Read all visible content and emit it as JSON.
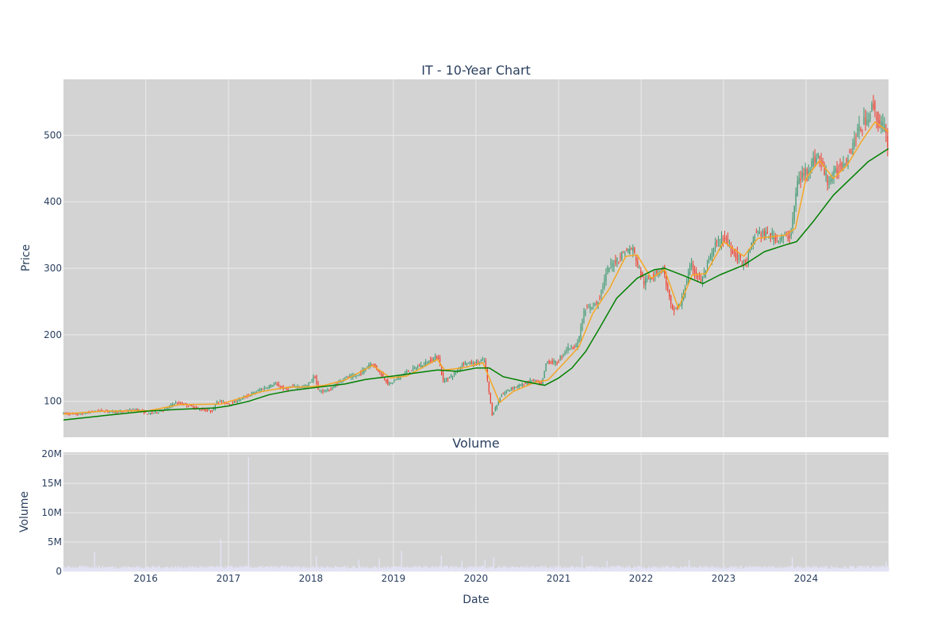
{
  "colors": {
    "plot_bg": "#d3d3d3",
    "grid": "#ebebeb",
    "increasing": "#3d9970",
    "decreasing": "#ef3e2e",
    "ma_short": "#f5a623",
    "ma_long": "#008000",
    "volume": "#e3e3f5",
    "text": "#2a3f5f"
  },
  "chart_data": [
    {
      "type": "candlestick",
      "title": "IT - 10-Year Chart",
      "ylabel": "Price",
      "xlabel": "",
      "xlim": [
        "2015-01-02",
        "2024-12-31"
      ],
      "ylim": [
        46,
        584
      ],
      "yticks": [
        100,
        200,
        300,
        400,
        500
      ],
      "grid": true,
      "legend": "none",
      "price_points": [
        [
          "2015-01-02",
          82
        ],
        [
          "2015-03-15",
          80
        ],
        [
          "2015-06-15",
          86
        ],
        [
          "2015-09-15",
          84
        ],
        [
          "2015-12-01",
          88
        ],
        [
          "2016-01-15",
          81
        ],
        [
          "2016-03-01",
          84
        ],
        [
          "2016-04-15",
          90
        ],
        [
          "2016-05-15",
          98
        ],
        [
          "2016-07-01",
          95
        ],
        [
          "2016-09-01",
          88
        ],
        [
          "2016-11-01",
          85
        ],
        [
          "2016-11-15",
          101
        ],
        [
          "2017-01-15",
          96
        ],
        [
          "2017-04-01",
          108
        ],
        [
          "2017-06-01",
          118
        ],
        [
          "2017-08-01",
          126
        ],
        [
          "2017-09-15",
          118
        ],
        [
          "2017-11-01",
          123
        ],
        [
          "2017-12-15",
          121
        ],
        [
          "2018-01-25",
          138
        ],
        [
          "2018-02-10",
          115
        ],
        [
          "2018-04-01",
          117
        ],
        [
          "2018-06-01",
          135
        ],
        [
          "2018-08-01",
          138
        ],
        [
          "2018-10-01",
          158
        ],
        [
          "2018-11-01",
          147
        ],
        [
          "2018-12-20",
          125
        ],
        [
          "2019-02-15",
          140
        ],
        [
          "2019-04-15",
          150
        ],
        [
          "2019-06-01",
          158
        ],
        [
          "2019-07-25",
          168
        ],
        [
          "2019-08-15",
          130
        ],
        [
          "2019-10-01",
          140
        ],
        [
          "2019-11-15",
          158
        ],
        [
          "2020-01-01",
          157
        ],
        [
          "2020-02-15",
          162
        ],
        [
          "2020-03-20",
          80
        ],
        [
          "2020-05-01",
          110
        ],
        [
          "2020-06-15",
          120
        ],
        [
          "2020-08-01",
          125
        ],
        [
          "2020-09-15",
          132
        ],
        [
          "2020-10-25",
          125
        ],
        [
          "2020-11-15",
          160
        ],
        [
          "2021-01-01",
          158
        ],
        [
          "2021-02-15",
          180
        ],
        [
          "2021-04-01",
          185
        ],
        [
          "2021-05-01",
          235
        ],
        [
          "2021-07-01",
          250
        ],
        [
          "2021-08-15",
          300
        ],
        [
          "2021-10-01",
          315
        ],
        [
          "2021-10-25",
          325
        ],
        [
          "2021-12-01",
          330
        ],
        [
          "2022-01-20",
          278
        ],
        [
          "2022-03-01",
          290
        ],
        [
          "2022-04-15",
          300
        ],
        [
          "2022-05-25",
          235
        ],
        [
          "2022-07-01",
          245
        ],
        [
          "2022-08-15",
          305
        ],
        [
          "2022-10-01",
          280
        ],
        [
          "2022-12-01",
          335
        ],
        [
          "2023-01-15",
          345
        ],
        [
          "2023-03-01",
          320
        ],
        [
          "2023-04-15",
          305
        ],
        [
          "2023-06-01",
          355
        ],
        [
          "2023-07-15",
          350
        ],
        [
          "2023-09-15",
          345
        ],
        [
          "2023-11-01",
          350
        ],
        [
          "2023-12-01",
          430
        ],
        [
          "2024-01-15",
          450
        ],
        [
          "2024-03-01",
          470
        ],
        [
          "2024-04-15",
          430
        ],
        [
          "2024-06-01",
          450
        ],
        [
          "2024-07-15",
          470
        ],
        [
          "2024-08-15",
          500
        ],
        [
          "2024-10-01",
          525
        ],
        [
          "2024-11-01",
          545
        ],
        [
          "2024-11-20",
          520
        ],
        [
          "2024-12-20",
          510
        ],
        [
          "2024-12-31",
          490
        ]
      ],
      "ma_short_points": [
        [
          "2015-01-02",
          81
        ],
        [
          "2015-06-15",
          85
        ],
        [
          "2016-01-15",
          86
        ],
        [
          "2016-06-01",
          95
        ],
        [
          "2016-12-01",
          96
        ],
        [
          "2017-06-01",
          115
        ],
        [
          "2017-09-15",
          121
        ],
        [
          "2018-01-01",
          122
        ],
        [
          "2018-03-01",
          124
        ],
        [
          "2018-06-01",
          132
        ],
        [
          "2018-10-01",
          154
        ],
        [
          "2018-12-20",
          135
        ],
        [
          "2019-03-01",
          138
        ],
        [
          "2019-07-15",
          163
        ],
        [
          "2019-08-15",
          147
        ],
        [
          "2019-11-01",
          150
        ],
        [
          "2020-02-01",
          158
        ],
        [
          "2020-04-15",
          98
        ],
        [
          "2020-06-15",
          115
        ],
        [
          "2020-09-15",
          128
        ],
        [
          "2020-11-15",
          132
        ],
        [
          "2021-02-01",
          160
        ],
        [
          "2021-04-01",
          182
        ],
        [
          "2021-06-01",
          232
        ],
        [
          "2021-08-15",
          270
        ],
        [
          "2021-10-25",
          318
        ],
        [
          "2021-12-15",
          320
        ],
        [
          "2022-02-15",
          285
        ],
        [
          "2022-04-15",
          298
        ],
        [
          "2022-06-15",
          240
        ],
        [
          "2022-08-15",
          290
        ],
        [
          "2022-10-15",
          292
        ],
        [
          "2023-01-01",
          340
        ],
        [
          "2023-04-01",
          318
        ],
        [
          "2023-06-01",
          345
        ],
        [
          "2023-10-01",
          350
        ],
        [
          "2023-11-15",
          360
        ],
        [
          "2024-01-01",
          435
        ],
        [
          "2024-03-01",
          462
        ],
        [
          "2024-05-01",
          435
        ],
        [
          "2024-07-01",
          455
        ],
        [
          "2024-09-01",
          490
        ],
        [
          "2024-11-01",
          520
        ],
        [
          "2024-12-31",
          505
        ]
      ],
      "ma_long_points": [
        [
          "2015-01-02",
          72
        ],
        [
          "2015-06-15",
          78
        ],
        [
          "2016-01-01",
          85
        ],
        [
          "2016-06-01",
          88
        ],
        [
          "2016-11-01",
          90
        ],
        [
          "2017-01-01",
          93
        ],
        [
          "2017-04-01",
          100
        ],
        [
          "2017-07-01",
          110
        ],
        [
          "2017-10-01",
          116
        ],
        [
          "2018-01-01",
          120
        ],
        [
          "2018-06-01",
          126
        ],
        [
          "2018-09-01",
          133
        ],
        [
          "2019-01-01",
          138
        ],
        [
          "2019-04-15",
          143
        ],
        [
          "2019-07-15",
          147
        ],
        [
          "2019-10-15",
          145
        ],
        [
          "2020-01-01",
          150
        ],
        [
          "2020-03-01",
          150
        ],
        [
          "2020-05-01",
          137
        ],
        [
          "2020-08-01",
          130
        ],
        [
          "2020-11-01",
          124
        ],
        [
          "2021-01-01",
          135
        ],
        [
          "2021-03-01",
          150
        ],
        [
          "2021-05-01",
          175
        ],
        [
          "2021-07-01",
          210
        ],
        [
          "2021-09-15",
          255
        ],
        [
          "2021-12-15",
          285
        ],
        [
          "2022-03-01",
          298
        ],
        [
          "2022-04-15",
          300
        ],
        [
          "2022-07-15",
          288
        ],
        [
          "2022-10-01",
          277
        ],
        [
          "2022-12-15",
          290
        ],
        [
          "2023-04-01",
          305
        ],
        [
          "2023-07-01",
          325
        ],
        [
          "2023-10-01",
          335
        ],
        [
          "2023-11-20",
          340
        ],
        [
          "2024-02-01",
          370
        ],
        [
          "2024-05-01",
          410
        ],
        [
          "2024-08-01",
          440
        ],
        [
          "2024-10-01",
          460
        ],
        [
          "2024-12-31",
          480
        ]
      ]
    },
    {
      "type": "bar",
      "title": "Volume",
      "ylabel": "Volume",
      "xlabel": "Date",
      "xlim": [
        "2015-01-02",
        "2024-12-31"
      ],
      "ylim": [
        0,
        20300000
      ],
      "yticks": [
        0,
        5000000,
        10000000,
        15000000,
        20000000
      ],
      "ytick_labels": [
        "0",
        "5M",
        "10M",
        "15M",
        "20M"
      ],
      "xticks": [
        "2016-01-01",
        "2017-01-01",
        "2018-01-01",
        "2019-01-01",
        "2020-01-01",
        "2021-01-01",
        "2022-01-01",
        "2023-01-01",
        "2024-01-01"
      ],
      "xtick_labels": [
        "2016",
        "2017",
        "2018",
        "2019",
        "2020",
        "2021",
        "2022",
        "2023",
        "2024"
      ],
      "grid": true,
      "baseline": 700000,
      "spikes": [
        [
          "2015-05-20",
          3300000
        ],
        [
          "2016-11-28",
          5500000
        ],
        [
          "2017-03-31",
          19500000
        ],
        [
          "2018-01-25",
          2600000
        ],
        [
          "2018-08-01",
          2000000
        ],
        [
          "2018-10-31",
          2200000
        ],
        [
          "2019-02-06",
          3500000
        ],
        [
          "2019-08-01",
          2700000
        ],
        [
          "2019-10-31",
          1800000
        ],
        [
          "2020-02-10",
          2000000
        ],
        [
          "2020-03-20",
          2400000
        ],
        [
          "2021-04-15",
          2600000
        ],
        [
          "2021-08-03",
          1800000
        ],
        [
          "2022-08-02",
          2000000
        ],
        [
          "2023-11-01",
          2400000
        ],
        [
          "2024-12-20",
          1600000
        ]
      ]
    }
  ]
}
